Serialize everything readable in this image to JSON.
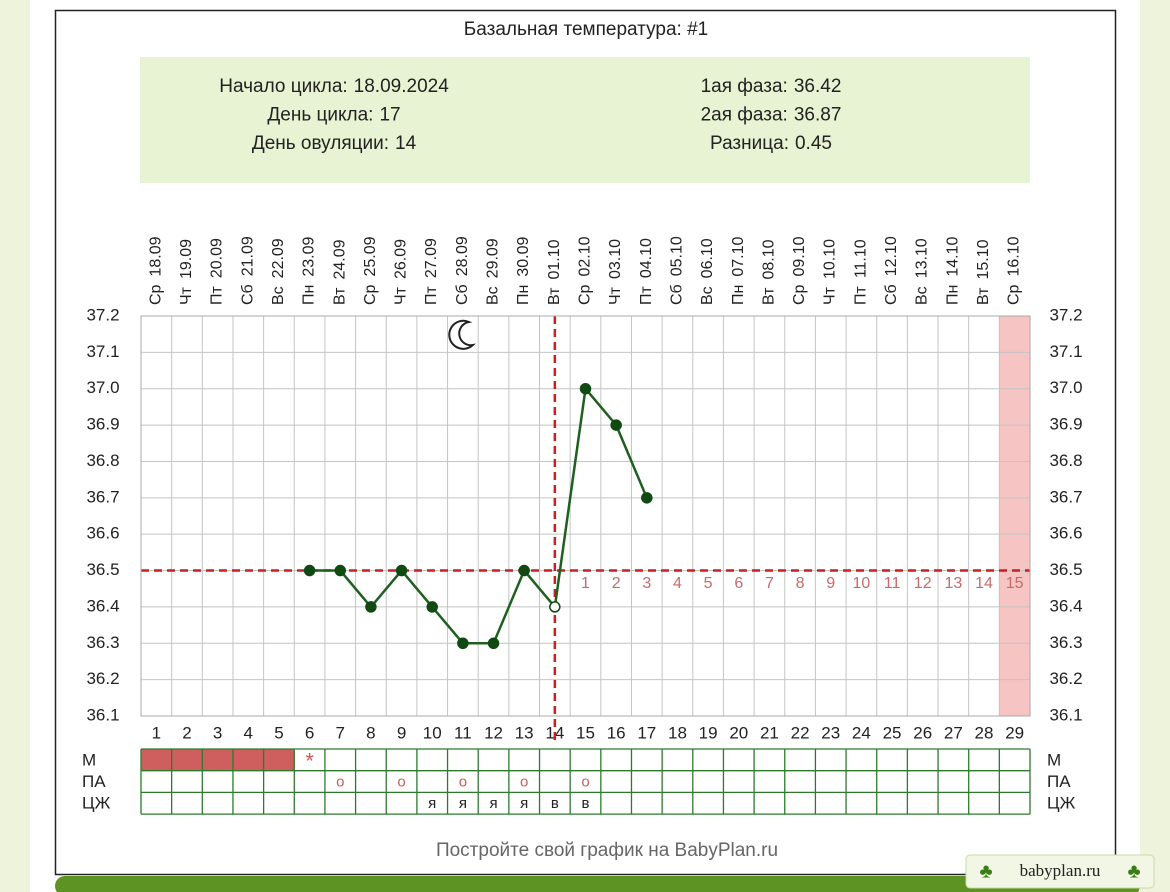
{
  "chart_data": {
    "type": "line",
    "title": "Базальная температура: #1",
    "info_left": [
      {
        "label": "Начало цикла:",
        "value": "18.09.2024"
      },
      {
        "label": "День цикла:",
        "value": 17
      },
      {
        "label": "День овуляции:",
        "value": 14
      }
    ],
    "info_right": [
      {
        "label": "1ая фаза:",
        "value": 36.42
      },
      {
        "label": "2ая фаза:",
        "value": 36.87
      },
      {
        "label": "Разница:",
        "value": 0.45
      }
    ],
    "days": [
      1,
      2,
      3,
      4,
      5,
      6,
      7,
      8,
      9,
      10,
      11,
      12,
      13,
      14,
      15,
      16,
      17,
      18,
      19,
      20,
      21,
      22,
      23,
      24,
      25,
      26,
      27,
      28,
      29
    ],
    "weekdays": [
      "Ср",
      "Чт",
      "Пт",
      "Сб",
      "Вс",
      "Пн",
      "Вт",
      "Ср",
      "Чт",
      "Пт",
      "Сб",
      "Вс",
      "Пн",
      "Вт",
      "Ср",
      "Чт",
      "Пт",
      "Сб",
      "Вс",
      "Пн",
      "Вт",
      "Ср",
      "Чт",
      "Пт",
      "Сб",
      "Вс",
      "Пн",
      "Вт",
      "Ср"
    ],
    "dates": [
      "18.09",
      "19.09",
      "20.09",
      "21.09",
      "22.09",
      "23.09",
      "24.09",
      "25.09",
      "26.09",
      "27.09",
      "28.09",
      "29.09",
      "30.09",
      "01.10",
      "02.10",
      "03.10",
      "04.10",
      "05.10",
      "06.10",
      "07.10",
      "08.10",
      "09.10",
      "10.10",
      "11.10",
      "12.10",
      "13.10",
      "14.10",
      "15.10",
      "16.10"
    ],
    "series": [
      {
        "name": "Температура",
        "color": "#1f5f1f",
        "values": [
          null,
          null,
          null,
          null,
          null,
          36.5,
          36.5,
          36.4,
          36.5,
          36.4,
          36.3,
          36.3,
          36.5,
          36.4,
          37.0,
          36.9,
          36.7,
          null,
          null,
          null,
          null,
          null,
          null,
          null,
          null,
          null,
          null,
          null,
          null
        ]
      }
    ],
    "ylim": [
      36.1,
      37.2
    ],
    "yticks": [
      36.1,
      36.2,
      36.3,
      36.4,
      36.5,
      36.6,
      36.7,
      36.8,
      36.9,
      {
        "value": 37.0,
        "label": "37.0"
      },
      37.1,
      37.2
    ],
    "grid": true,
    "coverline": 36.5,
    "phase_days": [
      1,
      2,
      3,
      4,
      5,
      6,
      7,
      8,
      9,
      10,
      11,
      12,
      13,
      14,
      15
    ],
    "highlight_day": 29,
    "moon_day": 11,
    "table": {
      "rows": [
        {
          "label": "М",
          "filled": [
            1,
            2,
            3,
            4,
            5
          ],
          "cells": [
            null,
            null,
            null,
            null,
            null,
            "*",
            null,
            null,
            null,
            null,
            null,
            null,
            null,
            null,
            null,
            null,
            null,
            null,
            null,
            null,
            null,
            null,
            null,
            null,
            null,
            null,
            null,
            null,
            null
          ]
        },
        {
          "label": "ПА",
          "cells": [
            null,
            null,
            null,
            null,
            null,
            null,
            "о",
            null,
            "о",
            null,
            "о",
            null,
            "о",
            null,
            "о",
            null,
            null,
            null,
            null,
            null,
            null,
            null,
            null,
            null,
            null,
            null,
            null,
            null,
            null
          ]
        },
        {
          "label": "ЦЖ",
          "cells": [
            null,
            null,
            null,
            null,
            null,
            null,
            null,
            null,
            null,
            "я",
            "я",
            "я",
            "я",
            "в",
            "в",
            null,
            null,
            null,
            null,
            null,
            null,
            null,
            null,
            null,
            null,
            null,
            null,
            null,
            null
          ]
        }
      ]
    },
    "footer": "Постройте свой график на BabyPlan.ru",
    "badge": "babyplan.ru"
  }
}
